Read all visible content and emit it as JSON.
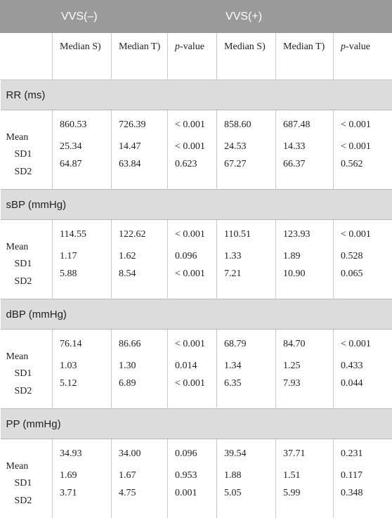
{
  "header": {
    "blank": "",
    "group_neg": "VVS(–)",
    "group_pos": "VVS(+)"
  },
  "subheader": {
    "median_s": "Median S)",
    "median_t": "Median T)",
    "p_italic": "p",
    "p_rest": "-value"
  },
  "row_labels": {
    "mean": "Mean",
    "sd1": "SD1",
    "sd2": "SD2"
  },
  "sections": [
    {
      "title": "RR (ms)",
      "neg": {
        "s": [
          "860.53",
          "25.34",
          "64.87"
        ],
        "t": [
          "726.39",
          "14.47",
          "63.84"
        ],
        "p": [
          "< 0.001",
          "< 0.001",
          "0.623"
        ]
      },
      "pos": {
        "s": [
          "858.60",
          "24.53",
          "67.27"
        ],
        "t": [
          "687.48",
          "14.33",
          "66.37"
        ],
        "p": [
          "< 0.001",
          "< 0.001",
          "0.562"
        ]
      }
    },
    {
      "title": "sBP (mmHg)",
      "neg": {
        "s": [
          "114.55",
          "1.17",
          "5.88"
        ],
        "t": [
          "122.62",
          "1.62",
          "8.54"
        ],
        "p": [
          "< 0.001",
          "0.096",
          "< 0.001"
        ]
      },
      "pos": {
        "s": [
          "110.51",
          "1.33",
          "7.21"
        ],
        "t": [
          "123.93",
          "1.89",
          "10.90"
        ],
        "p": [
          "< 0.001",
          "0.528",
          "0.065"
        ]
      }
    },
    {
      "title": "dBP (mmHg)",
      "neg": {
        "s": [
          "76.14",
          "1.03",
          "5.12"
        ],
        "t": [
          "86.66",
          "1.30",
          "6.89"
        ],
        "p": [
          "< 0.001",
          "0.014",
          "< 0.001"
        ]
      },
      "pos": {
        "s": [
          "68.79",
          "1.34",
          "6.35"
        ],
        "t": [
          "84.70",
          "1.25",
          "7.93"
        ],
        "p": [
          "< 0.001",
          "0.433",
          "0.044"
        ]
      }
    },
    {
      "title": "PP (mmHg)",
      "neg": {
        "s": [
          "34.93",
          "1.69",
          "3.71"
        ],
        "t": [
          "34.00",
          "1.67",
          "4.75"
        ],
        "p": [
          "0.096",
          "0.953",
          "0.001"
        ]
      },
      "pos": {
        "s": [
          "39.54",
          "1.88",
          "5.05"
        ],
        "t": [
          "37.71",
          "1.51",
          "5.99"
        ],
        "p": [
          "0.231",
          "0.117",
          "0.348"
        ]
      }
    }
  ]
}
